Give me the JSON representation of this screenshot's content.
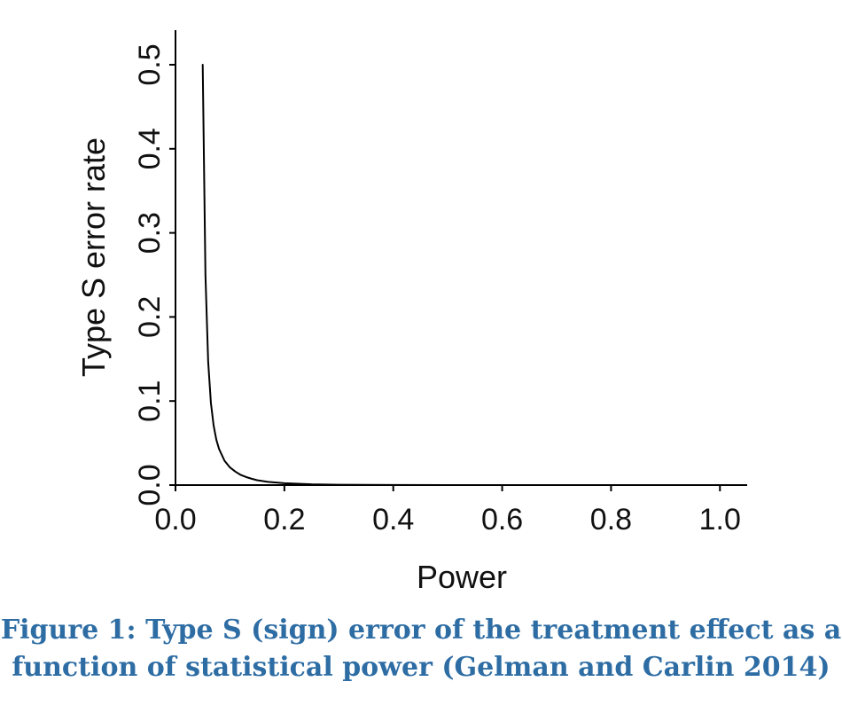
{
  "chart_data": {
    "type": "line",
    "xlabel": "Power",
    "ylabel": "Type S error rate",
    "xlim": [
      0.0,
      1.05
    ],
    "ylim": [
      0.0,
      0.5
    ],
    "xticks": [
      "0.0",
      "0.2",
      "0.4",
      "0.6",
      "0.8",
      "1.0"
    ],
    "yticks": [
      "0.0",
      "0.1",
      "0.2",
      "0.3",
      "0.4",
      "0.5"
    ],
    "grid": false,
    "series": [
      {
        "color": "#000000",
        "x": [
          0.05,
          0.055,
          0.06,
          0.065,
          0.07,
          0.075,
          0.08,
          0.09,
          0.1,
          0.11,
          0.12,
          0.13,
          0.14,
          0.15,
          0.17,
          0.2,
          0.25,
          0.3,
          0.4,
          0.5,
          0.6
        ],
        "y": [
          0.5,
          0.25,
          0.147,
          0.098,
          0.071,
          0.054,
          0.043,
          0.029,
          0.021,
          0.016,
          0.012,
          0.0095,
          0.0075,
          0.0058,
          0.0038,
          0.0022,
          0.0009,
          0.0004,
          0.0001,
          3e-05,
          1e-05
        ]
      }
    ]
  },
  "caption": {
    "line1": "Figure 1: Type S (sign) error of the treatment effect as a",
    "line2": "function of statistical power (Gelman and Carlin 2014)"
  }
}
